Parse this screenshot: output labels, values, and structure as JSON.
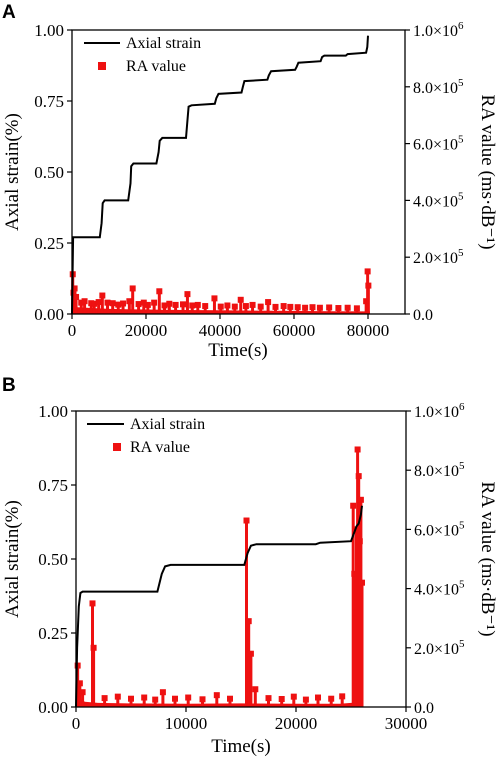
{
  "chart_data": [
    {
      "panel": "A",
      "type": "line",
      "xlabel": "Time(s)",
      "ylabel_left": "Axial strain(%)",
      "ylabel_right": "RA value (ms·dB⁻¹)",
      "xlim": [
        0,
        90000
      ],
      "ylim_left": [
        0,
        1.0
      ],
      "ylim_right": [
        0,
        1000000
      ],
      "x_ticks": [
        0,
        20000,
        40000,
        60000,
        80000
      ],
      "x_tick_labels": [
        "0",
        "20000",
        "40000",
        "60000",
        "80000"
      ],
      "y_left_ticks": [
        0,
        0.25,
        0.5,
        0.75,
        1.0
      ],
      "y_left_tick_labels": [
        "0.00",
        "0.25",
        "0.50",
        "0.75",
        "1.00"
      ],
      "y_right_ticks": [
        0,
        200000,
        400000,
        600000,
        800000,
        1000000
      ],
      "y_right_tick_labels": [
        {
          "base": "0.0",
          "exp": ""
        },
        {
          "base": "2.0×10",
          "exp": "5"
        },
        {
          "base": "4.0×10",
          "exp": "5"
        },
        {
          "base": "6.0×10",
          "exp": "5"
        },
        {
          "base": "8.0×10",
          "exp": "5"
        },
        {
          "base": "1.0×10",
          "exp": "6"
        }
      ],
      "legend": [
        "Axial strain",
        "RA value"
      ],
      "colors": {
        "strain": "#000000",
        "ra": "#ee1111"
      },
      "series": [
        {
          "name": "Axial strain",
          "axis": "left",
          "points": [
            [
              0,
              0.0
            ],
            [
              300,
              0.27
            ],
            [
              7500,
              0.27
            ],
            [
              8000,
              0.32
            ],
            [
              8300,
              0.39
            ],
            [
              8800,
              0.4
            ],
            [
              15200,
              0.4
            ],
            [
              15800,
              0.46
            ],
            [
              16000,
              0.52
            ],
            [
              16600,
              0.53
            ],
            [
              22800,
              0.53
            ],
            [
              23400,
              0.57
            ],
            [
              23700,
              0.61
            ],
            [
              24400,
              0.62
            ],
            [
              30800,
              0.62
            ],
            [
              31200,
              0.68
            ],
            [
              31500,
              0.73
            ],
            [
              32300,
              0.735
            ],
            [
              38600,
              0.74
            ],
            [
              39000,
              0.76
            ],
            [
              39600,
              0.775
            ],
            [
              45800,
              0.78
            ],
            [
              46200,
              0.8
            ],
            [
              46600,
              0.82
            ],
            [
              52800,
              0.825
            ],
            [
              53200,
              0.84
            ],
            [
              53800,
              0.855
            ],
            [
              60300,
              0.86
            ],
            [
              60700,
              0.87
            ],
            [
              61200,
              0.885
            ],
            [
              67200,
              0.89
            ],
            [
              67600,
              0.905
            ],
            [
              68200,
              0.91
            ],
            [
              74000,
              0.91
            ],
            [
              74500,
              0.915
            ],
            [
              79500,
              0.92
            ],
            [
              79800,
              0.94
            ],
            [
              80000,
              0.98
            ]
          ]
        },
        {
          "name": "RA value",
          "axis": "right",
          "baseline": [
            [
              0,
              30000
            ],
            [
              1500,
              24000
            ],
            [
              4000,
              22000
            ],
            [
              10000,
              18000
            ],
            [
              20000,
              16000
            ],
            [
              30000,
              14000
            ],
            [
              40000,
              13000
            ],
            [
              50000,
              12000
            ],
            [
              60000,
              11000
            ],
            [
              70000,
              10000
            ],
            [
              79000,
              9000
            ],
            [
              80500,
              9000
            ]
          ],
          "spikes": [
            [
              200,
              140000
            ],
            [
              400,
              75000
            ],
            [
              700,
              90000
            ],
            [
              1100,
              60000
            ],
            [
              2500,
              40000
            ],
            [
              3400,
              45000
            ],
            [
              5200,
              38000
            ],
            [
              6000,
              36000
            ],
            [
              7200,
              42000
            ],
            [
              8200,
              65000
            ],
            [
              9600,
              40000
            ],
            [
              11000,
              38000
            ],
            [
              12500,
              33000
            ],
            [
              13800,
              37000
            ],
            [
              15500,
              45000
            ],
            [
              16400,
              90000
            ],
            [
              18000,
              35000
            ],
            [
              19400,
              40000
            ],
            [
              20500,
              32000
            ],
            [
              22200,
              40000
            ],
            [
              23600,
              80000
            ],
            [
              25000,
              30000
            ],
            [
              26300,
              36000
            ],
            [
              28000,
              32000
            ],
            [
              30000,
              34000
            ],
            [
              31200,
              70000
            ],
            [
              32500,
              30000
            ],
            [
              34000,
              32000
            ],
            [
              36000,
              28000
            ],
            [
              38500,
              55000
            ],
            [
              40200,
              26000
            ],
            [
              42000,
              30000
            ],
            [
              44000,
              26000
            ],
            [
              45600,
              50000
            ],
            [
              47000,
              28000
            ],
            [
              48800,
              32000
            ],
            [
              51000,
              26000
            ],
            [
              53000,
              42000
            ],
            [
              55000,
              25000
            ],
            [
              57200,
              28000
            ],
            [
              59000,
              25000
            ],
            [
              61000,
              24000
            ],
            [
              63000,
              22000
            ],
            [
              65000,
              24000
            ],
            [
              67000,
              22000
            ],
            [
              69500,
              23000
            ],
            [
              72000,
              21000
            ],
            [
              74500,
              22000
            ],
            [
              77000,
              20000
            ],
            [
              79500,
              45000
            ],
            [
              79900,
              150000
            ],
            [
              80100,
              100000
            ]
          ]
        }
      ]
    },
    {
      "panel": "B",
      "type": "line",
      "xlabel": "Time(s)",
      "ylabel_left": "Axial strain(%)",
      "ylabel_right": "RA value (ms·dB⁻¹)",
      "xlim": [
        0,
        30000
      ],
      "ylim_left": [
        0,
        1.0
      ],
      "ylim_right": [
        0,
        1000000
      ],
      "x_ticks": [
        0,
        10000,
        20000,
        30000
      ],
      "x_tick_labels": [
        "0",
        "10000",
        "20000",
        "30000"
      ],
      "y_left_ticks": [
        0,
        0.25,
        0.5,
        0.75,
        1.0
      ],
      "y_left_tick_labels": [
        "0.00",
        "0.25",
        "0.50",
        "0.75",
        "1.00"
      ],
      "y_right_ticks": [
        0,
        200000,
        400000,
        600000,
        800000,
        1000000
      ],
      "y_right_tick_labels": [
        {
          "base": "0.0",
          "exp": ""
        },
        {
          "base": "2.0×10",
          "exp": "5"
        },
        {
          "base": "4.0×10",
          "exp": "5"
        },
        {
          "base": "6.0×10",
          "exp": "5"
        },
        {
          "base": "8.0×10",
          "exp": "5"
        },
        {
          "base": "1.0×10",
          "exp": "6"
        }
      ],
      "legend": [
        "Axial strain",
        "RA value"
      ],
      "colors": {
        "strain": "#000000",
        "ra": "#ee1111"
      },
      "series": [
        {
          "name": "Axial strain",
          "axis": "left",
          "points": [
            [
              0,
              0.0
            ],
            [
              100,
              0.2
            ],
            [
              250,
              0.34
            ],
            [
              400,
              0.385
            ],
            [
              600,
              0.39
            ],
            [
              7400,
              0.39
            ],
            [
              7800,
              0.45
            ],
            [
              8100,
              0.475
            ],
            [
              8600,
              0.48
            ],
            [
              15300,
              0.48
            ],
            [
              15600,
              0.52
            ],
            [
              15900,
              0.545
            ],
            [
              16400,
              0.55
            ],
            [
              21800,
              0.55
            ],
            [
              22200,
              0.555
            ],
            [
              25000,
              0.56
            ],
            [
              25300,
              0.59
            ],
            [
              25500,
              0.61
            ],
            [
              25700,
              0.62
            ],
            [
              25900,
              0.65
            ],
            [
              26000,
              0.68
            ]
          ]
        },
        {
          "name": "RA value",
          "axis": "right",
          "baseline": [
            [
              0,
              60000
            ],
            [
              300,
              30000
            ],
            [
              800,
              18000
            ],
            [
              2000,
              14000
            ],
            [
              5000,
              12000
            ],
            [
              10000,
              11000
            ],
            [
              15000,
              12000
            ],
            [
              20000,
              11000
            ],
            [
              24000,
              11000
            ],
            [
              25000,
              14000
            ],
            [
              26100,
              14000
            ]
          ],
          "spikes": [
            [
              150,
              140000
            ],
            [
              350,
              80000
            ],
            [
              600,
              50000
            ],
            [
              1500,
              350000
            ],
            [
              1600,
              200000
            ],
            [
              2600,
              30000
            ],
            [
              3800,
              35000
            ],
            [
              5000,
              28000
            ],
            [
              6200,
              32000
            ],
            [
              7200,
              25000
            ],
            [
              7900,
              50000
            ],
            [
              9000,
              28000
            ],
            [
              10200,
              32000
            ],
            [
              11500,
              26000
            ],
            [
              12800,
              40000
            ],
            [
              14000,
              28000
            ],
            [
              15500,
              630000
            ],
            [
              15700,
              290000
            ],
            [
              15900,
              180000
            ],
            [
              16300,
              60000
            ],
            [
              17500,
              30000
            ],
            [
              18700,
              27000
            ],
            [
              19800,
              35000
            ],
            [
              20900,
              25000
            ],
            [
              22000,
              32000
            ],
            [
              23200,
              28000
            ],
            [
              24200,
              36000
            ],
            [
              25200,
              680000
            ],
            [
              25300,
              450000
            ],
            [
              25400,
              320000
            ],
            [
              25500,
              600000
            ],
            [
              25600,
              870000
            ],
            [
              25700,
              780000
            ],
            [
              25800,
              560000
            ],
            [
              25900,
              700000
            ],
            [
              26000,
              420000
            ]
          ]
        }
      ]
    }
  ]
}
